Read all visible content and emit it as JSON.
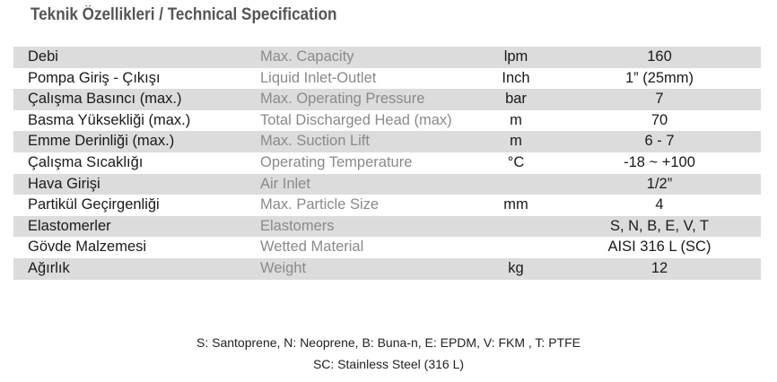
{
  "header": {
    "title": "Teknik Özellikleri / Technical Specification"
  },
  "table": {
    "rows": [
      [
        "Debi",
        "Max. Capacity",
        "lpm",
        "160"
      ],
      [
        "Pompa Giriş - Çıkışı",
        "Liquid Inlet-Outlet",
        "Inch",
        "1” (25mm)"
      ],
      [
        "Çalışma Basıncı (max.)",
        "Max. Operating Pressure",
        "bar",
        "7"
      ],
      [
        "Basma Yüksekliği (max.)",
        "Total Discharged Head (max)",
        "m",
        "70"
      ],
      [
        "Emme Derinliği (max.)",
        "Max. Suction Lift",
        "m",
        "6 - 7"
      ],
      [
        "Çalışma Sıcaklığı",
        "Operating Temperature",
        "°C",
        "-18 ~ +100"
      ],
      [
        "Hava Girişi",
        "Air Inlet",
        null,
        "1/2”"
      ],
      [
        "Partikül Geçirgenliği",
        "Max. Particle Size",
        "mm",
        "4"
      ],
      [
        "Elastomerler",
        "Elastomers",
        null,
        "S, N, B, E, V, T"
      ],
      [
        "Gövde Malzemesi",
        "Wetted Material",
        null,
        "AISI 316 L  (SC)"
      ],
      [
        "Ağırlık",
        "Weight",
        "kg",
        "12"
      ]
    ]
  },
  "footnotes": [
    "S: Santoprene, N: Neoprene, B: Buna-n, E: EPDM, V: FKM , T: PTFE",
    "SC: Stainless Steel (316 L)"
  ]
}
